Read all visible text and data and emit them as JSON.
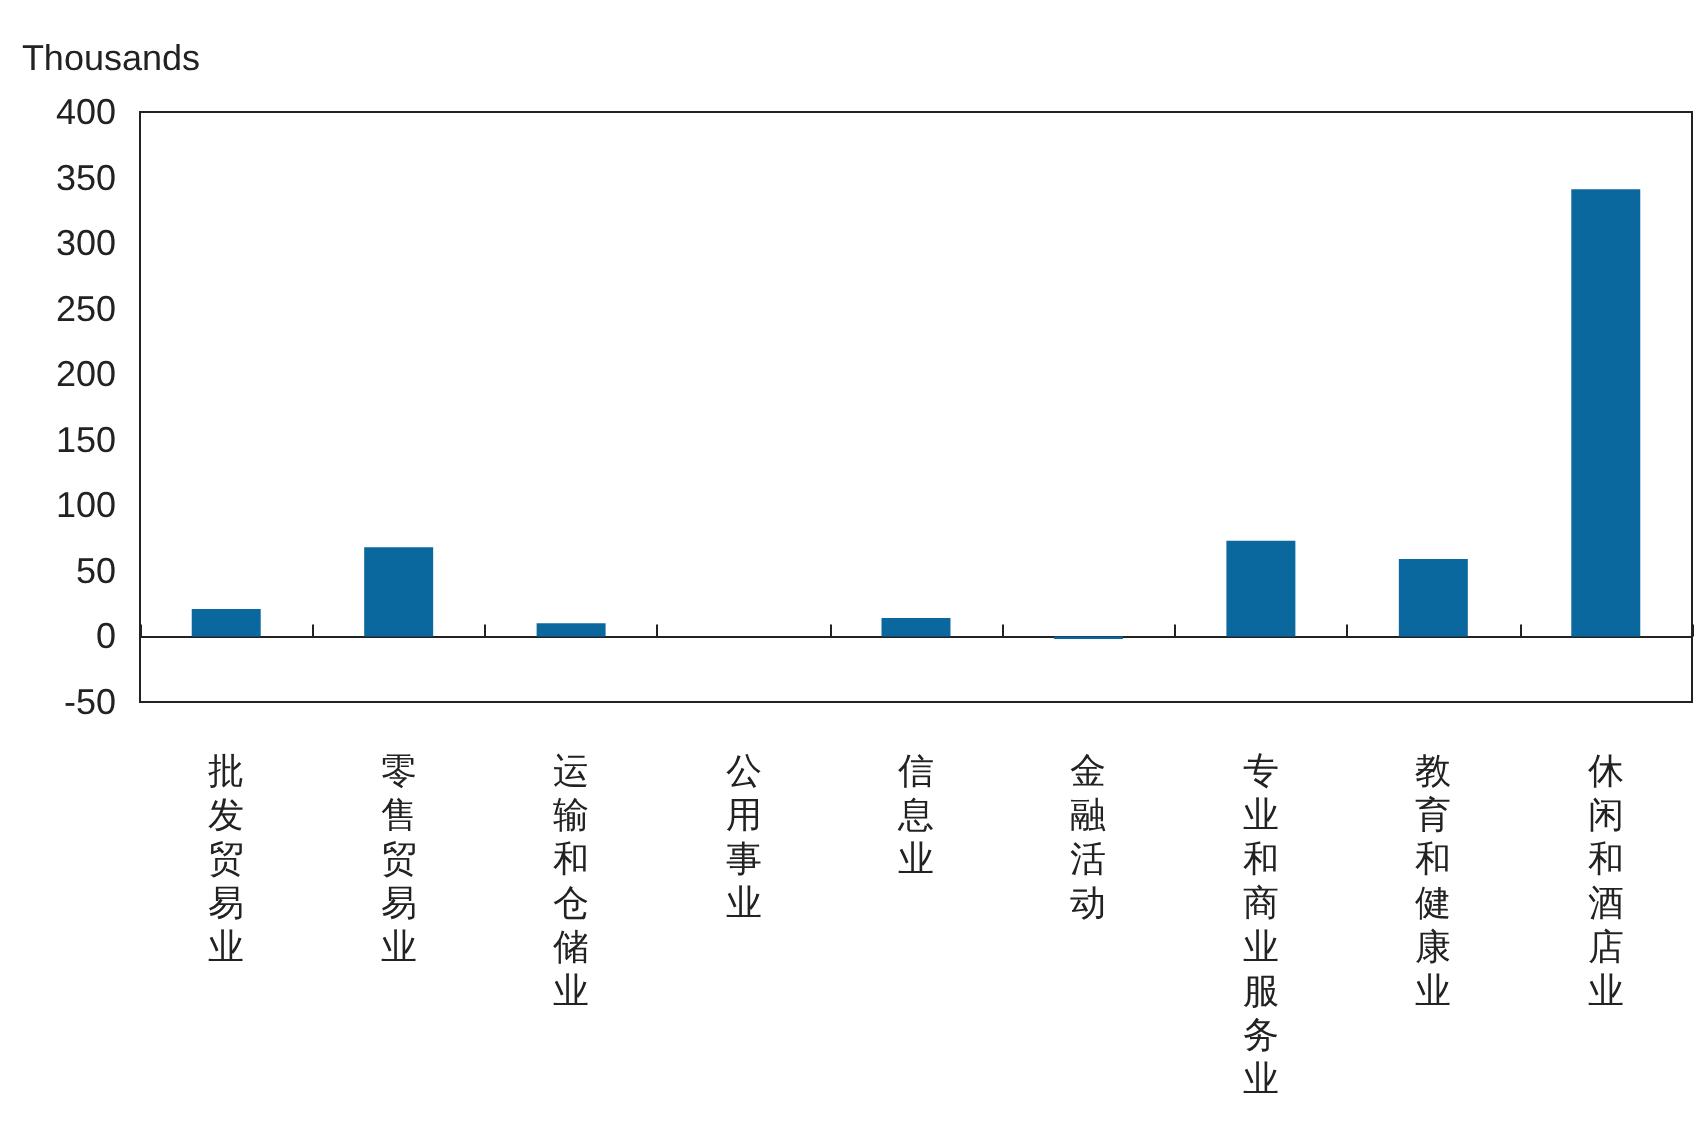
{
  "chart_data": {
    "type": "bar",
    "ylabel": "Thousands",
    "categories": [
      "批发贸易业",
      "零售贸易业",
      "运输和仓储业",
      "公用事业",
      "信息业",
      "金融活动",
      "专业和商业服务业",
      "教育和健康业",
      "休闲和酒店业"
    ],
    "values": [
      21,
      68,
      10,
      0,
      14,
      -2,
      73,
      59,
      341
    ],
    "color": "#0b689f",
    "ylim": [
      -50,
      400
    ],
    "yticks": [
      -50,
      0,
      50,
      100,
      150,
      200,
      250,
      300,
      350,
      400
    ]
  }
}
